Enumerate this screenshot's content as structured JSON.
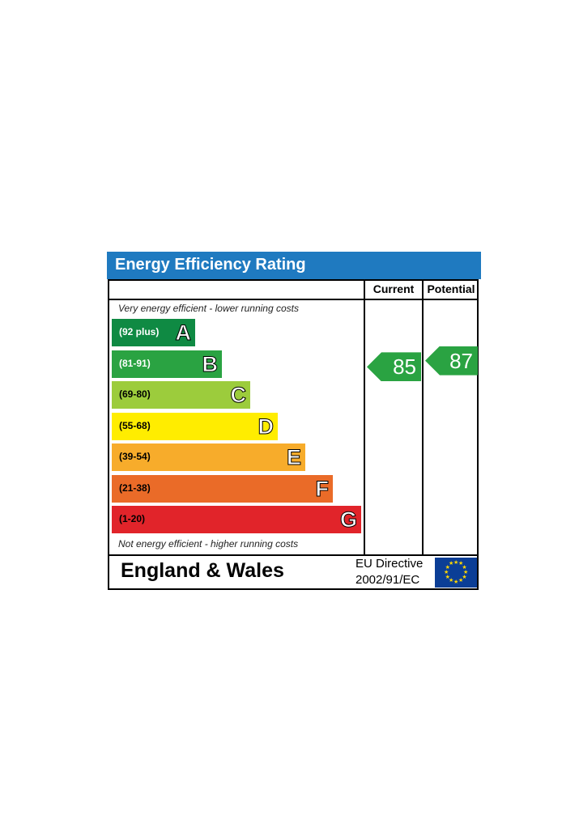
{
  "chart_data": {
    "type": "table",
    "title": "Energy Efficiency Rating",
    "columns": [
      "Current",
      "Potential"
    ],
    "top_caption": "Very energy efficient - lower running costs",
    "bottom_caption": "Not energy efficient - higher running costs",
    "bands": [
      {
        "letter": "A",
        "range": "(92 plus)",
        "color": "#0f8a43",
        "text_color": "#ffffff"
      },
      {
        "letter": "B",
        "range": "(81-91)",
        "color": "#2aa342",
        "text_color": "#ffffff"
      },
      {
        "letter": "C",
        "range": "(69-80)",
        "color": "#9ccc3c",
        "text_color": "#000000"
      },
      {
        "letter": "D",
        "range": "(55-68)",
        "color": "#ffed00",
        "text_color": "#000000"
      },
      {
        "letter": "E",
        "range": "(39-54)",
        "color": "#f7ac2b",
        "text_color": "#000000"
      },
      {
        "letter": "F",
        "range": "(21-38)",
        "color": "#ea6b28",
        "text_color": "#000000"
      },
      {
        "letter": "G",
        "range": "(1-20)",
        "color": "#e1242a",
        "text_color": "#000000"
      }
    ],
    "current": 85,
    "potential": 87,
    "current_band": "B",
    "potential_band": "B",
    "pointer_color": "#2aa342"
  },
  "footer": {
    "region": "England & Wales",
    "directive_line1": "EU Directive",
    "directive_line2": "2002/91/EC",
    "flag_icon": "eu-flag-icon"
  },
  "colors": {
    "header": "#1f7ac0"
  }
}
